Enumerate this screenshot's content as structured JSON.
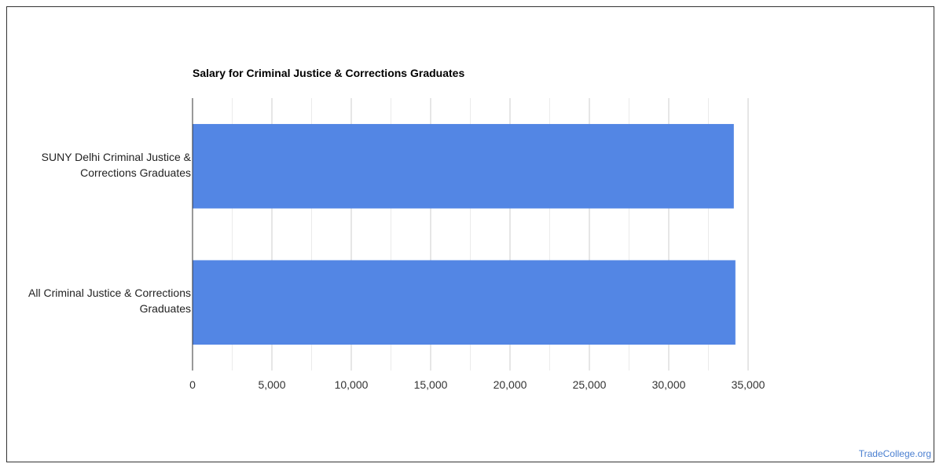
{
  "chart_data": {
    "type": "bar",
    "orientation": "horizontal",
    "title": "Salary for Criminal Justice & Corrections Graduates",
    "categories": [
      "SUNY Delhi Criminal Justice & Corrections Graduates",
      "All Criminal Justice & Corrections Graduates"
    ],
    "category_lines": [
      [
        "SUNY Delhi Criminal Justice &",
        "Corrections Graduates"
      ],
      [
        "All Criminal Justice & Corrections",
        "Graduates"
      ]
    ],
    "values": [
      34100,
      34200
    ],
    "xlim": [
      0,
      35000
    ],
    "xticks": [
      0,
      5000,
      10000,
      15000,
      20000,
      25000,
      30000,
      35000
    ],
    "xtick_labels": [
      "0",
      "5,000",
      "10,000",
      "15,000",
      "20,000",
      "25,000",
      "30,000",
      "35,000"
    ],
    "bar_color": "#5386e4",
    "grid": true,
    "legend": "none"
  },
  "watermark": "TradeCollege.org"
}
